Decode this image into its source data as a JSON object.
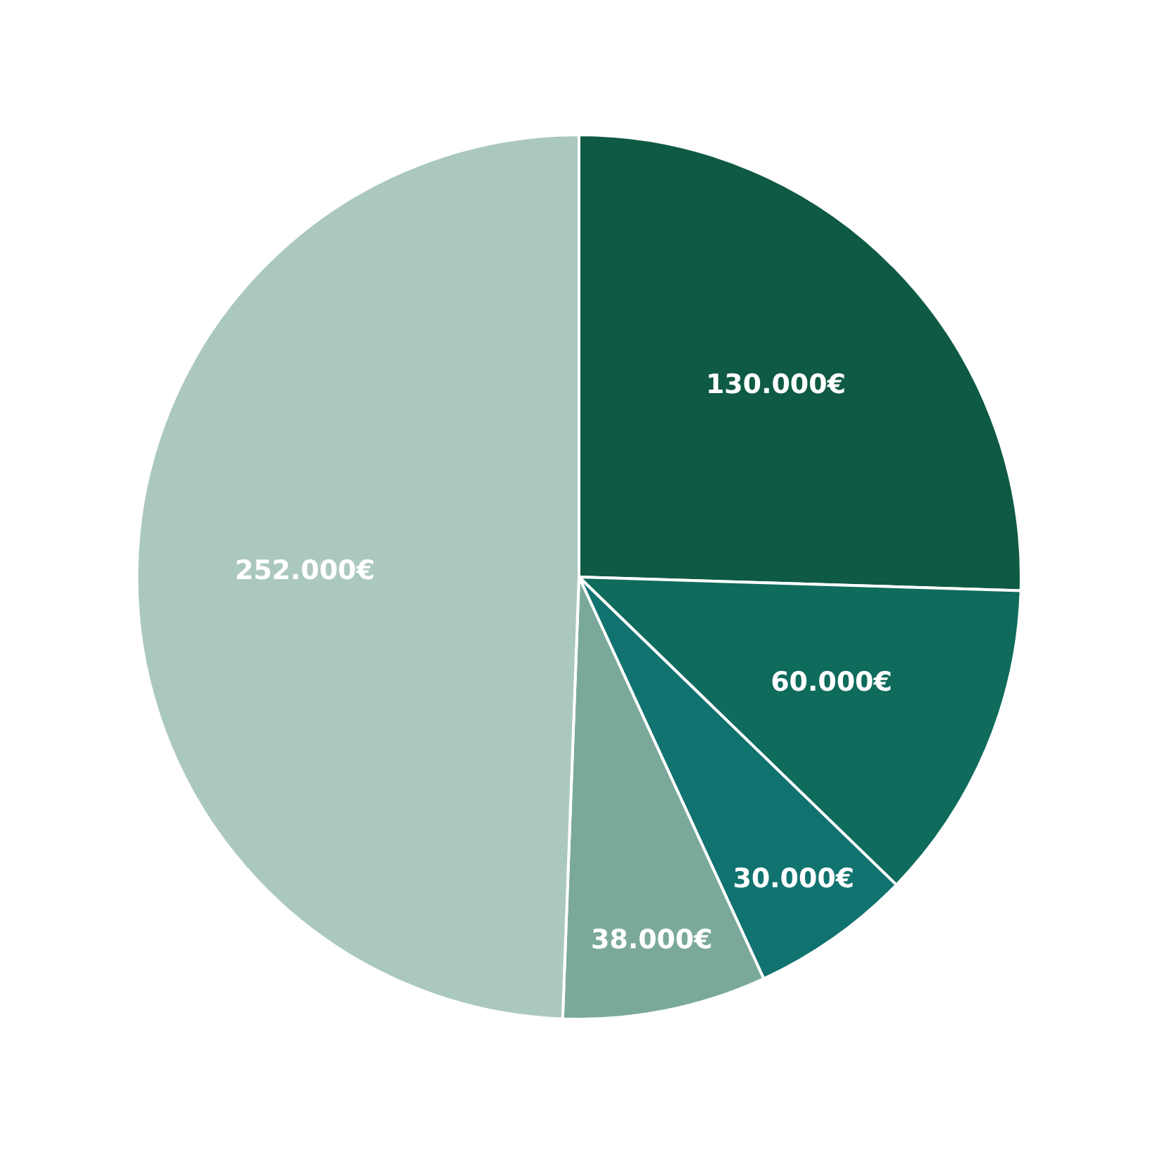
{
  "chart_data": {
    "type": "pie",
    "categories": [
      null,
      null,
      null,
      null,
      null
    ],
    "values": [
      130000,
      60000,
      30000,
      38000,
      252000
    ],
    "value_labels": [
      "130.000€",
      "60.000€",
      "30.000€",
      "38.000€",
      "252.000€"
    ],
    "colors": [
      "#0f5a45",
      "#0f6b5c",
      "#117370",
      "#7aa99b",
      "#abc8c0"
    ],
    "legend": false
  }
}
